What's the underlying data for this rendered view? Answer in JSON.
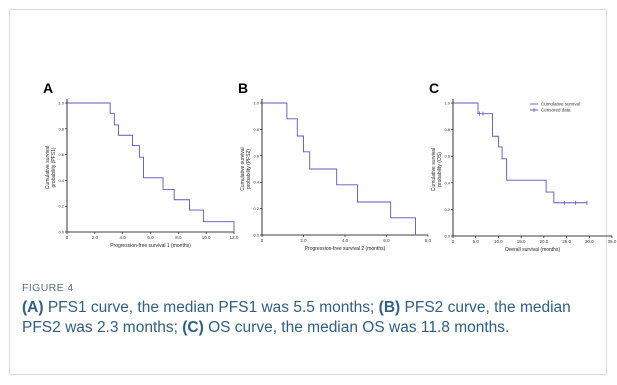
{
  "figure": {
    "label": "FIGURE 4",
    "caption_parts": [
      {
        "text": "(A)",
        "bold": true
      },
      {
        "text": " PFS1 curve, the median PFS1 was 5.5 months; ",
        "bold": false
      },
      {
        "text": "(B)",
        "bold": true
      },
      {
        "text": " PFS2 curve, the median PFS2 was 2.3 months; ",
        "bold": false
      },
      {
        "text": "(C)",
        "bold": true
      },
      {
        "text": " OS curve, the median OS was 11.8 months.",
        "bold": false
      }
    ]
  },
  "colors": {
    "curve": "#5b55c8",
    "axis": "#000000",
    "caption": "#2f5e86",
    "label": "#5a6f86",
    "border": "#d9dde3"
  },
  "chart_data": [
    {
      "panel": "A",
      "type": "line",
      "step": true,
      "xlabel": "Progression-free survival 1 (months)",
      "ylabel": "Cumulative survival probability (PFS1)",
      "xlim": [
        0,
        12
      ],
      "ylim": [
        0,
        1
      ],
      "xticks": [
        "0",
        "2.0",
        "4.0",
        "6.0",
        "8.0",
        "10.0",
        "12.0"
      ],
      "xtick_values": [
        0,
        2,
        4,
        6,
        8,
        10,
        12
      ],
      "yticks": [
        "0.0",
        "0.2",
        "0.4",
        "0.6",
        "0.8",
        "1.0"
      ],
      "ytick_values": [
        0,
        0.2,
        0.4,
        0.6,
        0.8,
        1.0
      ],
      "series": [
        {
          "x": [
            0,
            3.1,
            3.4,
            3.7,
            4.7,
            5.2,
            5.5,
            6.9,
            7.7,
            8.8,
            9.8,
            12.0
          ],
          "y": [
            1.0,
            0.92,
            0.83,
            0.75,
            0.67,
            0.58,
            0.42,
            0.33,
            0.25,
            0.17,
            0.08,
            0.0
          ]
        }
      ]
    },
    {
      "panel": "B",
      "type": "line",
      "step": true,
      "xlabel": "Progression-free survival 2 (months)",
      "ylabel": "Cumulative survival probability (PFS2)",
      "xlim": [
        0,
        8
      ],
      "ylim": [
        0,
        1
      ],
      "xticks": [
        "0",
        "2.0",
        "4.0",
        "6.0",
        "8.0"
      ],
      "xtick_values": [
        0,
        2,
        4,
        6,
        8
      ],
      "yticks": [
        "0.0",
        "0.2",
        "0.4",
        "0.6",
        "0.8",
        "1.0"
      ],
      "ytick_values": [
        0,
        0.2,
        0.4,
        0.6,
        0.8,
        1.0
      ],
      "series": [
        {
          "x": [
            0,
            1.2,
            1.7,
            2.0,
            2.3,
            3.6,
            4.6,
            6.2,
            7.4
          ],
          "y": [
            1.0,
            0.88,
            0.75,
            0.63,
            0.5,
            0.38,
            0.25,
            0.13,
            0.0
          ]
        }
      ]
    },
    {
      "panel": "C",
      "type": "line",
      "step": true,
      "xlabel": "Overall survival (months)",
      "ylabel": "Cumulative survival probability (OS)",
      "xlim": [
        0,
        35
      ],
      "ylim": [
        0,
        1
      ],
      "xticks": [
        "0",
        "5.0",
        "10.0",
        "15.0",
        "20.0",
        "25.0",
        "30.0",
        "35.0"
      ],
      "xtick_values": [
        0,
        5,
        10,
        15,
        20,
        25,
        30,
        35
      ],
      "yticks": [
        "0.0",
        "0.2",
        "0.4",
        "0.6",
        "0.8",
        "1.0"
      ],
      "ytick_values": [
        0,
        0.2,
        0.4,
        0.6,
        0.8,
        1.0
      ],
      "legend": {
        "position": "top-right",
        "entries": [
          "Cumulative survival",
          "Censored data"
        ]
      },
      "series": [
        {
          "name": "Cumulative survival",
          "x": [
            0,
            5.5,
            8.7,
            10.0,
            10.8,
            11.8,
            20.5,
            22.2,
            29.5
          ],
          "y": [
            1.0,
            0.92,
            0.75,
            0.67,
            0.58,
            0.42,
            0.33,
            0.25,
            0.25
          ],
          "censored": [
            [
              5.8,
              0.92
            ],
            [
              6.6,
              0.92
            ],
            [
              24.5,
              0.25
            ],
            [
              27.0,
              0.25
            ],
            [
              29.5,
              0.25
            ]
          ]
        }
      ]
    }
  ]
}
